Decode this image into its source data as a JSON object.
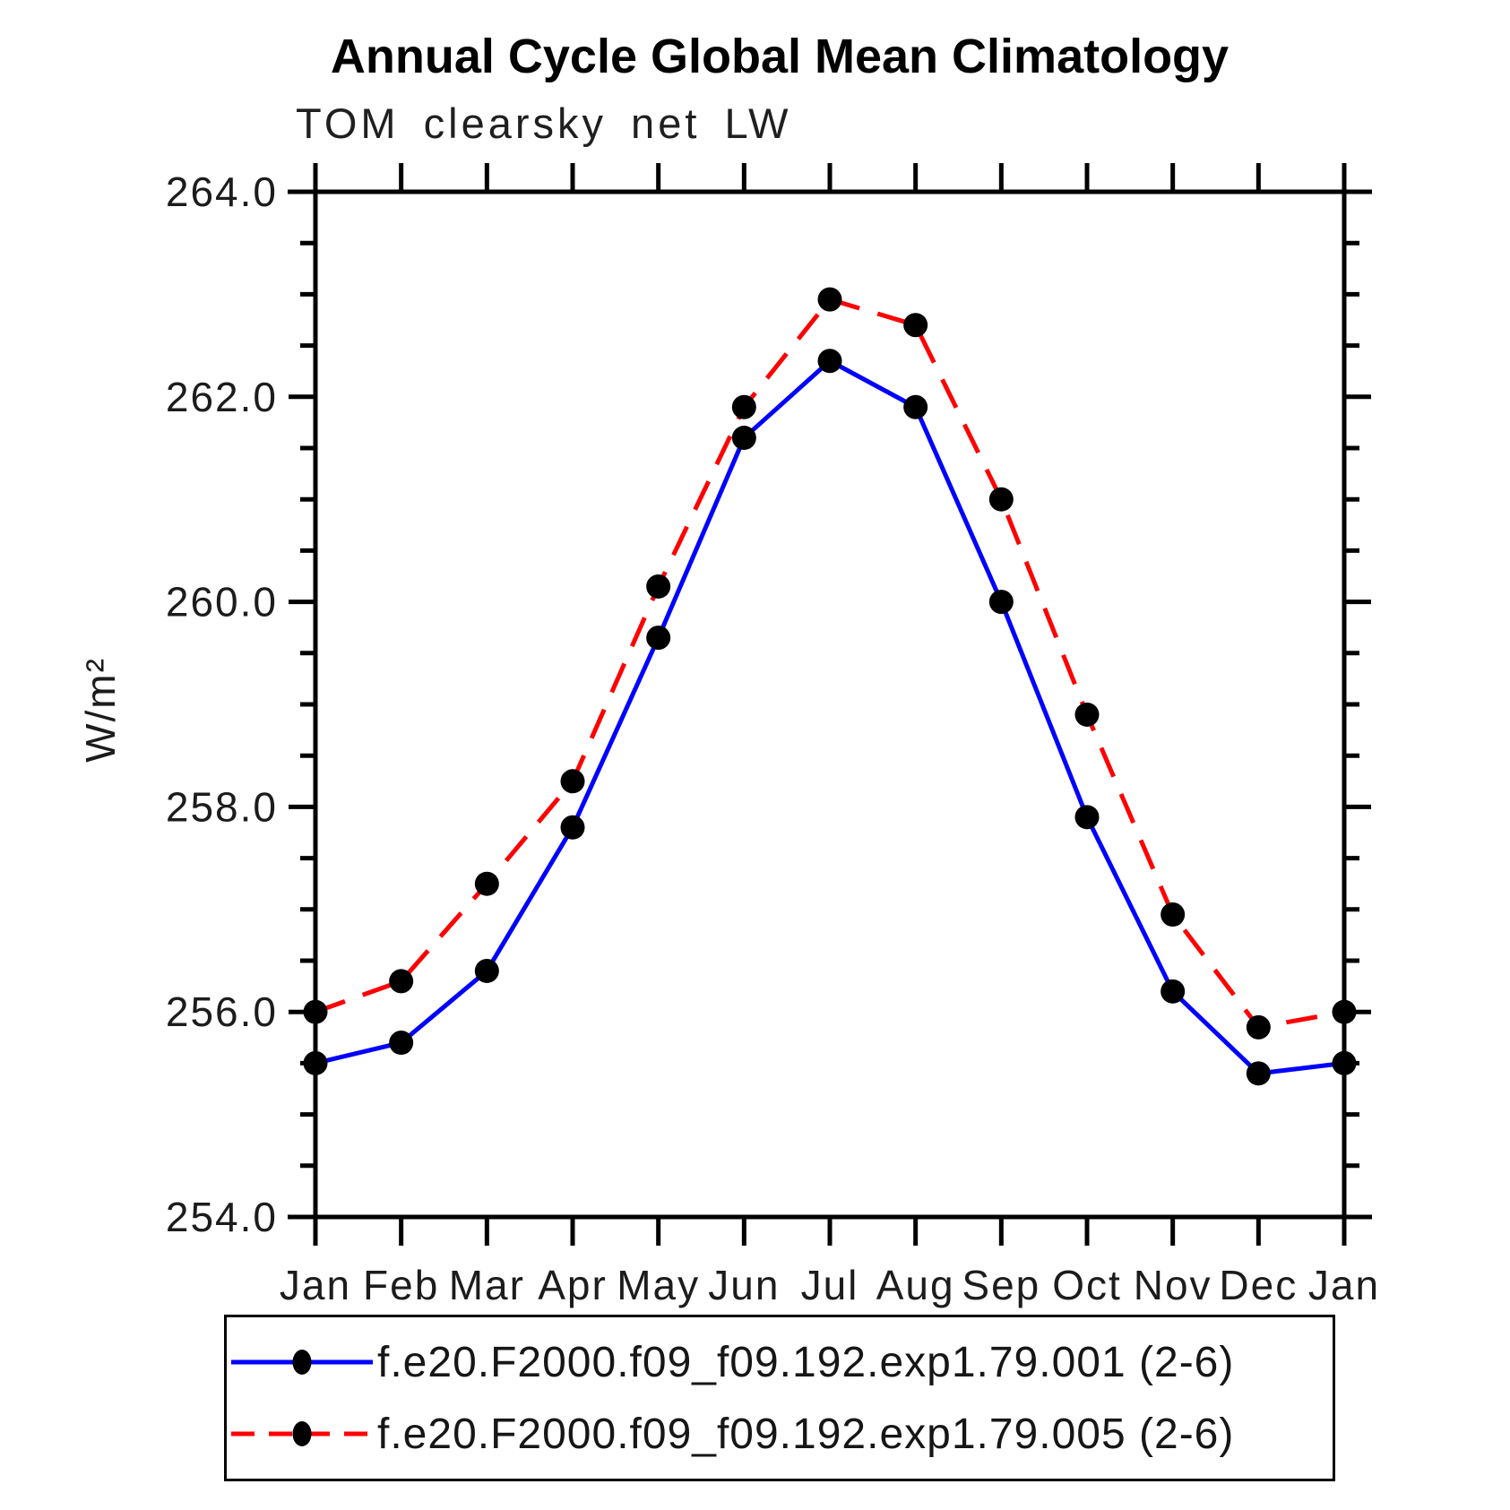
{
  "chart_data": {
    "type": "line",
    "title": "Annual Cycle Global Mean Climatology",
    "subtitle": "TOM clearsky net LW",
    "ylabel": "W/m²",
    "xlabel": "",
    "ylim": [
      254.0,
      264.0
    ],
    "ytick_major_interval": 2.0,
    "ytick_minor_interval": 0.5,
    "ytick_labels": [
      "254.0",
      "256.0",
      "258.0",
      "260.0",
      "262.0",
      "264.0"
    ],
    "categories": [
      "Jan",
      "Feb",
      "Mar",
      "Apr",
      "May",
      "Jun",
      "Jul",
      "Aug",
      "Sep",
      "Oct",
      "Nov",
      "Dec",
      "Jan"
    ],
    "grid": false,
    "legend_position": "bottom",
    "frame_color": "#000000",
    "series": [
      {
        "name": "f.e20.F2000.f09_f09.192.exp1.79.001 (2-6)",
        "color": "#0000ff",
        "line_style": "solid",
        "marker": "filled-circle",
        "marker_color": "#000000",
        "values": [
          255.5,
          255.7,
          256.4,
          257.8,
          259.65,
          261.6,
          262.35,
          261.9,
          260.0,
          257.9,
          256.2,
          255.4,
          255.5
        ]
      },
      {
        "name": "f.e20.F2000.f09_f09.192.exp1.79.005 (2-6)",
        "color": "#ff0000",
        "line_style": "dashed",
        "marker": "filled-circle",
        "marker_color": "#000000",
        "values": [
          256.0,
          256.3,
          257.25,
          258.25,
          260.15,
          261.9,
          262.95,
          262.7,
          261.0,
          258.9,
          256.95,
          255.85,
          256.0
        ]
      }
    ]
  }
}
